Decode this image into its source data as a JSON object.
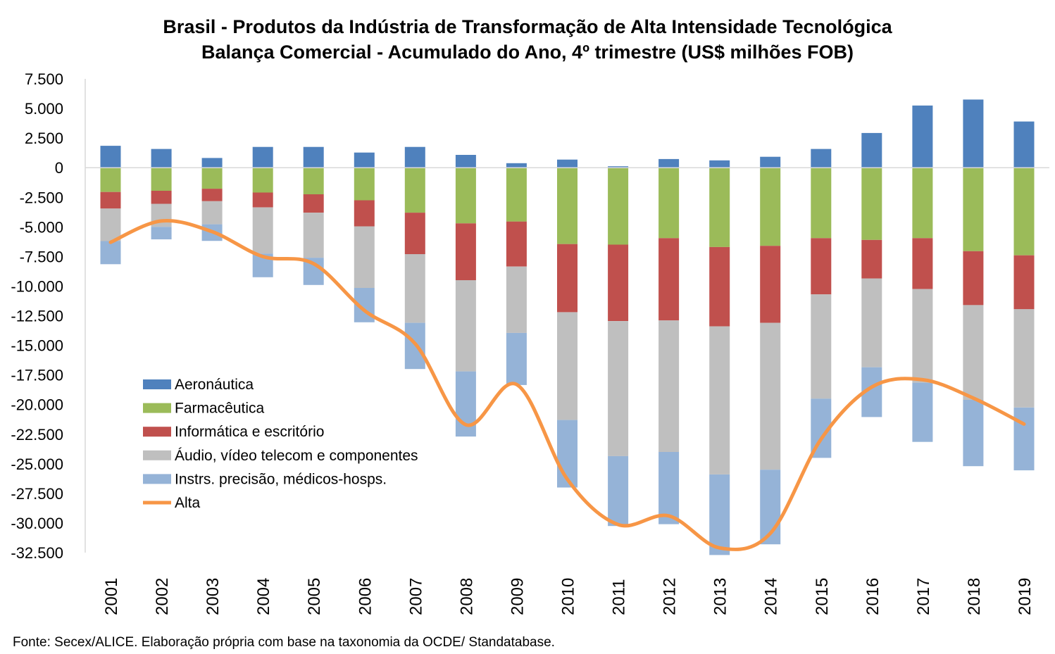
{
  "chart_data": {
    "type": "bar",
    "title": "Brasil - Produtos da Indústria de Transformação de Alta Intensidade Tecnológica",
    "subtitle": "Balança Comercial - Acumulado do Ano, 4º trimestre (US$ milhões FOB)",
    "xlabel": "",
    "ylabel": "",
    "ylim": [
      -32500,
      7500
    ],
    "yticks": [
      7500,
      5000,
      2500,
      0,
      -2500,
      -5000,
      -7500,
      -10000,
      -12500,
      -15000,
      -17500,
      -20000,
      -22500,
      -25000,
      -27500,
      -30000,
      -32500
    ],
    "ytick_labels": [
      "7.500",
      "5.000",
      "2.500",
      "0",
      "-2.500",
      "-5.000",
      "-7.500",
      "-10.000",
      "-12.500",
      "-15.000",
      "-17.500",
      "-20.000",
      "-22.500",
      "-25.000",
      "-27.500",
      "-30.000",
      "-32.500"
    ],
    "categories": [
      "2001",
      "2002",
      "2003",
      "2004",
      "2005",
      "2006",
      "2007",
      "2008",
      "2009",
      "2010",
      "2011",
      "2012",
      "2013",
      "2014",
      "2015",
      "2016",
      "2017",
      "2018",
      "2019"
    ],
    "stacked": true,
    "grid": false,
    "legend_position": "left",
    "series": [
      {
        "name": "Aeronáutica",
        "type": "bar",
        "color": "#4f81bd",
        "values": [
          1850,
          1580,
          820,
          1750,
          1750,
          1280,
          1750,
          1080,
          380,
          680,
          120,
          730,
          620,
          920,
          1580,
          2930,
          5250,
          5750,
          3900
        ]
      },
      {
        "name": "Farmacêutica",
        "type": "bar",
        "color": "#9bbb59",
        "values": [
          -2050,
          -1950,
          -1780,
          -2100,
          -2250,
          -2750,
          -3800,
          -4700,
          -4550,
          -6450,
          -6500,
          -5950,
          -6700,
          -6600,
          -5950,
          -6100,
          -5950,
          -7050,
          -7400
        ]
      },
      {
        "name": "Informática e escritório",
        "type": "bar",
        "color": "#c0504d",
        "values": [
          -1400,
          -1100,
          -1050,
          -1250,
          -1550,
          -2200,
          -3500,
          -4800,
          -3800,
          -5750,
          -6450,
          -6950,
          -6700,
          -6500,
          -4750,
          -3250,
          -4300,
          -4550,
          -4550
        ]
      },
      {
        "name": "Áudio, vídeo telecom e componentes",
        "type": "bar",
        "color": "#bfbfbf",
        "values": [
          -2750,
          -1950,
          -1950,
          -3900,
          -3800,
          -5200,
          -5800,
          -7700,
          -5600,
          -9100,
          -11400,
          -11100,
          -12500,
          -12400,
          -8800,
          -7500,
          -7900,
          -8000,
          -8300
        ]
      },
      {
        "name": "Instrs. precisão, médicos-hosps.",
        "type": "bar",
        "color": "#95b3d7",
        "values": [
          -1950,
          -1050,
          -1400,
          -2000,
          -2300,
          -2900,
          -3900,
          -5500,
          -4400,
          -5700,
          -5900,
          -6100,
          -6800,
          -6300,
          -5000,
          -4200,
          -5000,
          -5600,
          -5300
        ]
      },
      {
        "name": "Alta",
        "type": "line",
        "color": "#f79646",
        "values": [
          -6300,
          -4500,
          -5400,
          -7500,
          -8100,
          -12050,
          -14850,
          -21700,
          -18300,
          -26300,
          -30130,
          -29400,
          -32100,
          -30880,
          -22920,
          -18520,
          -17900,
          -19450,
          -21650
        ]
      }
    ]
  },
  "source": "Fonte: Secex/ALICE. Elaboração própria com base na taxonomia da OCDE/ Standatabase."
}
